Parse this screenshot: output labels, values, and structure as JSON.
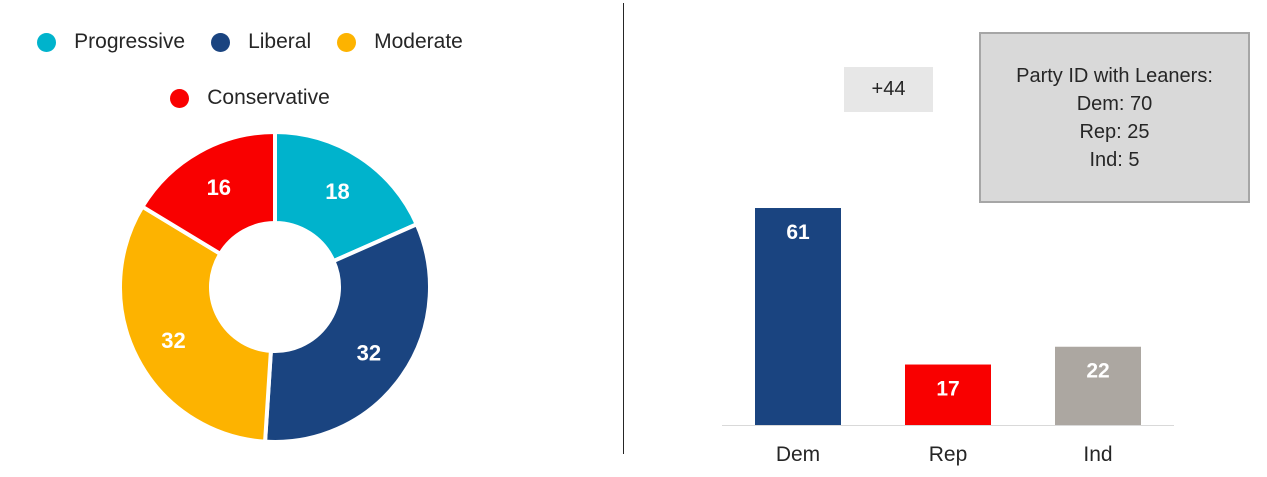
{
  "chart_data": [
    {
      "type": "pie",
      "subtype": "donut",
      "legend_position": "top",
      "series": [
        {
          "name": "Progressive",
          "value": 18,
          "color": "#00b3cc"
        },
        {
          "name": "Liberal",
          "value": 32,
          "color": "#1a4480"
        },
        {
          "name": "Moderate",
          "value": 32,
          "color": "#fdb300"
        },
        {
          "name": "Conservative",
          "value": 16,
          "color": "#f90000"
        }
      ]
    },
    {
      "type": "bar",
      "categories": [
        "Dem",
        "Rep",
        "Ind"
      ],
      "values": [
        61,
        17,
        22
      ],
      "colors": [
        "#1a4480",
        "#f90000",
        "#aca7a1"
      ],
      "ylim": [
        0,
        70
      ],
      "grid": false,
      "annotations": {
        "difference_label": "+44",
        "info_box": {
          "title": "Party ID with Leaners:",
          "lines": [
            "Dem: 70",
            "Rep: 25",
            "Ind: 5"
          ]
        }
      }
    }
  ]
}
